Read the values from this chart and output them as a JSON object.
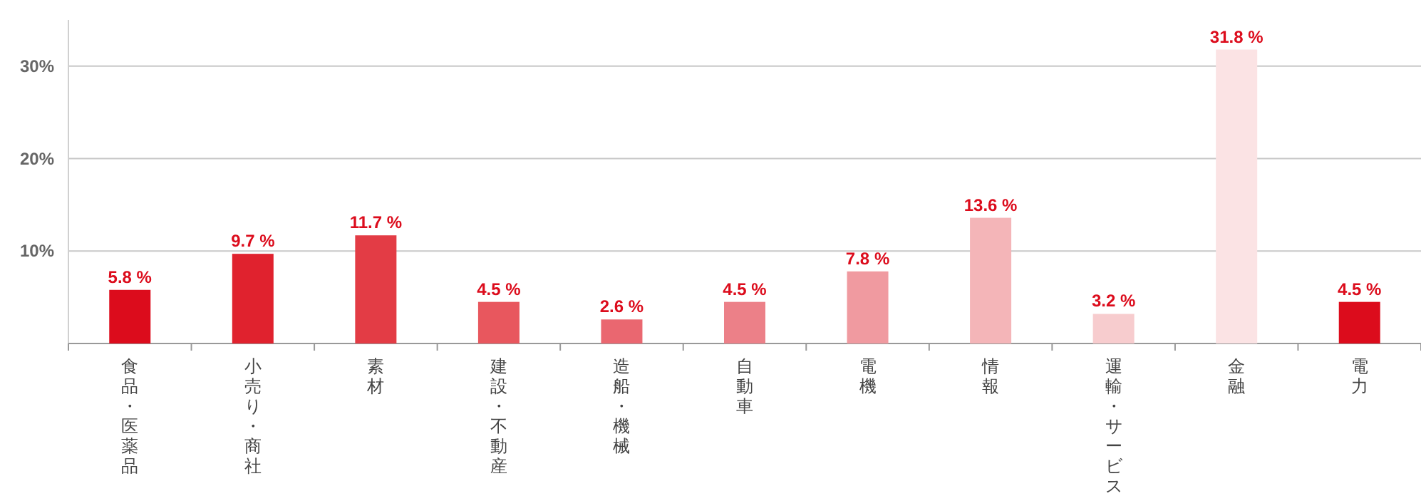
{
  "chart_data": {
    "type": "bar",
    "categories": [
      "食品・医薬品",
      "小売り・商社",
      "素材",
      "建設・不動産",
      "造船・機械",
      "自動車",
      "電機",
      "情報",
      "運輸・サービス",
      "金融",
      "電力"
    ],
    "values": [
      5.8,
      9.7,
      11.7,
      4.5,
      2.6,
      4.5,
      7.8,
      13.6,
      3.2,
      31.8,
      4.5
    ],
    "value_labels": [
      "5.8 %",
      "9.7 %",
      "11.7 %",
      "4.5 %",
      "2.6 %",
      "4.5 %",
      "7.8 %",
      "13.6 %",
      "3.2 %",
      "31.8 %",
      "4.5 %"
    ],
    "colors": [
      "#dc0c1c",
      "#e0222e",
      "#e33c45",
      "#e8575e",
      "#ea6770",
      "#ec8088",
      "#f09aa0",
      "#f4b5b8",
      "#f7ccce",
      "#fbe3e4",
      "#dc0c1c"
    ],
    "ylim": [
      0,
      35
    ],
    "yticks": [
      {
        "value": 10,
        "label": "10%"
      },
      {
        "value": 20,
        "label": "20%"
      },
      {
        "value": 30,
        "label": "30%"
      }
    ],
    "grid": "y"
  }
}
